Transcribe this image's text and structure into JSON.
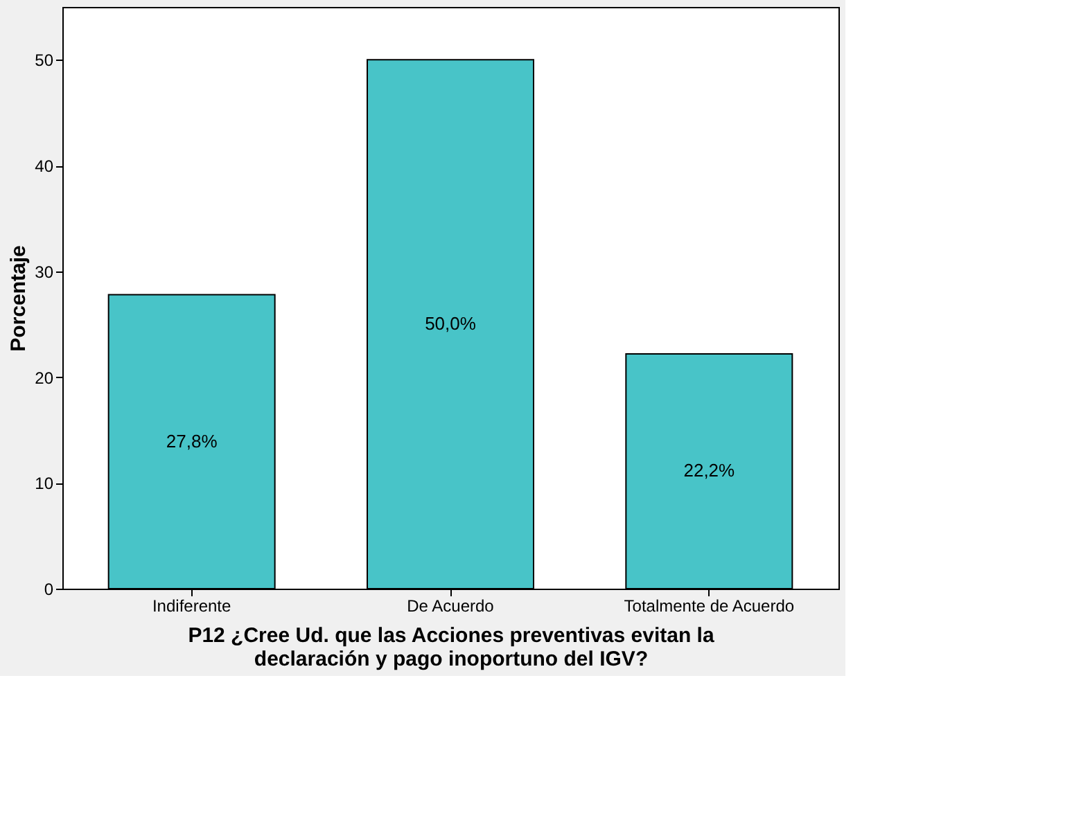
{
  "chart_data": {
    "type": "bar",
    "categories": [
      "Indiferente",
      "De Acuerdo",
      "Totalmente de Acuerdo"
    ],
    "values": [
      27.8,
      50.0,
      22.2
    ],
    "value_labels": [
      "27,8%",
      "50,0%",
      "22,2%"
    ],
    "color": "#48c4c8",
    "xlabel": "P12 ¿Cree Ud. que las Acciones preventivas evitan la declaración y pago inoportuno del IGV?",
    "ylabel": "Porcentaje",
    "ylim": [
      0,
      55
    ],
    "yticks": [
      0,
      10,
      20,
      30,
      40,
      50
    ],
    "grid": false
  }
}
